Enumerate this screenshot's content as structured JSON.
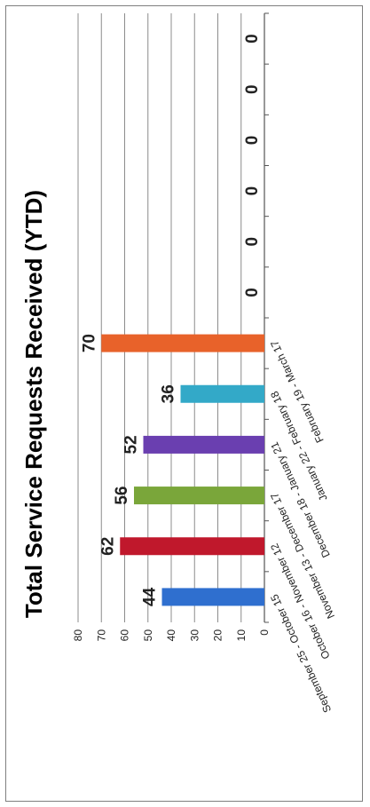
{
  "chart_data": {
    "type": "bar",
    "orientation": "rotated-90",
    "title": "Total Service Requests Received (YTD)",
    "categories": [
      "September 25 - October 15",
      "October 16 - November 12",
      "November 13 - December 17",
      "December 18 - January 21",
      "January 22 - February 18",
      "February 19 - March 17",
      "",
      "",
      "",
      "",
      "",
      ""
    ],
    "values": [
      44,
      62,
      56,
      52,
      36,
      70,
      0,
      0,
      0,
      0,
      0,
      0
    ],
    "colors": [
      "#2f6fcf",
      "#c0182c",
      "#7aa63a",
      "#6a3fb0",
      "#33a9c8",
      "#e8622a"
    ],
    "ylim": [
      0,
      80
    ],
    "yticks": [
      0,
      10,
      20,
      30,
      40,
      50,
      60,
      70,
      80
    ],
    "grid": true,
    "xlabel": "",
    "ylabel": ""
  }
}
